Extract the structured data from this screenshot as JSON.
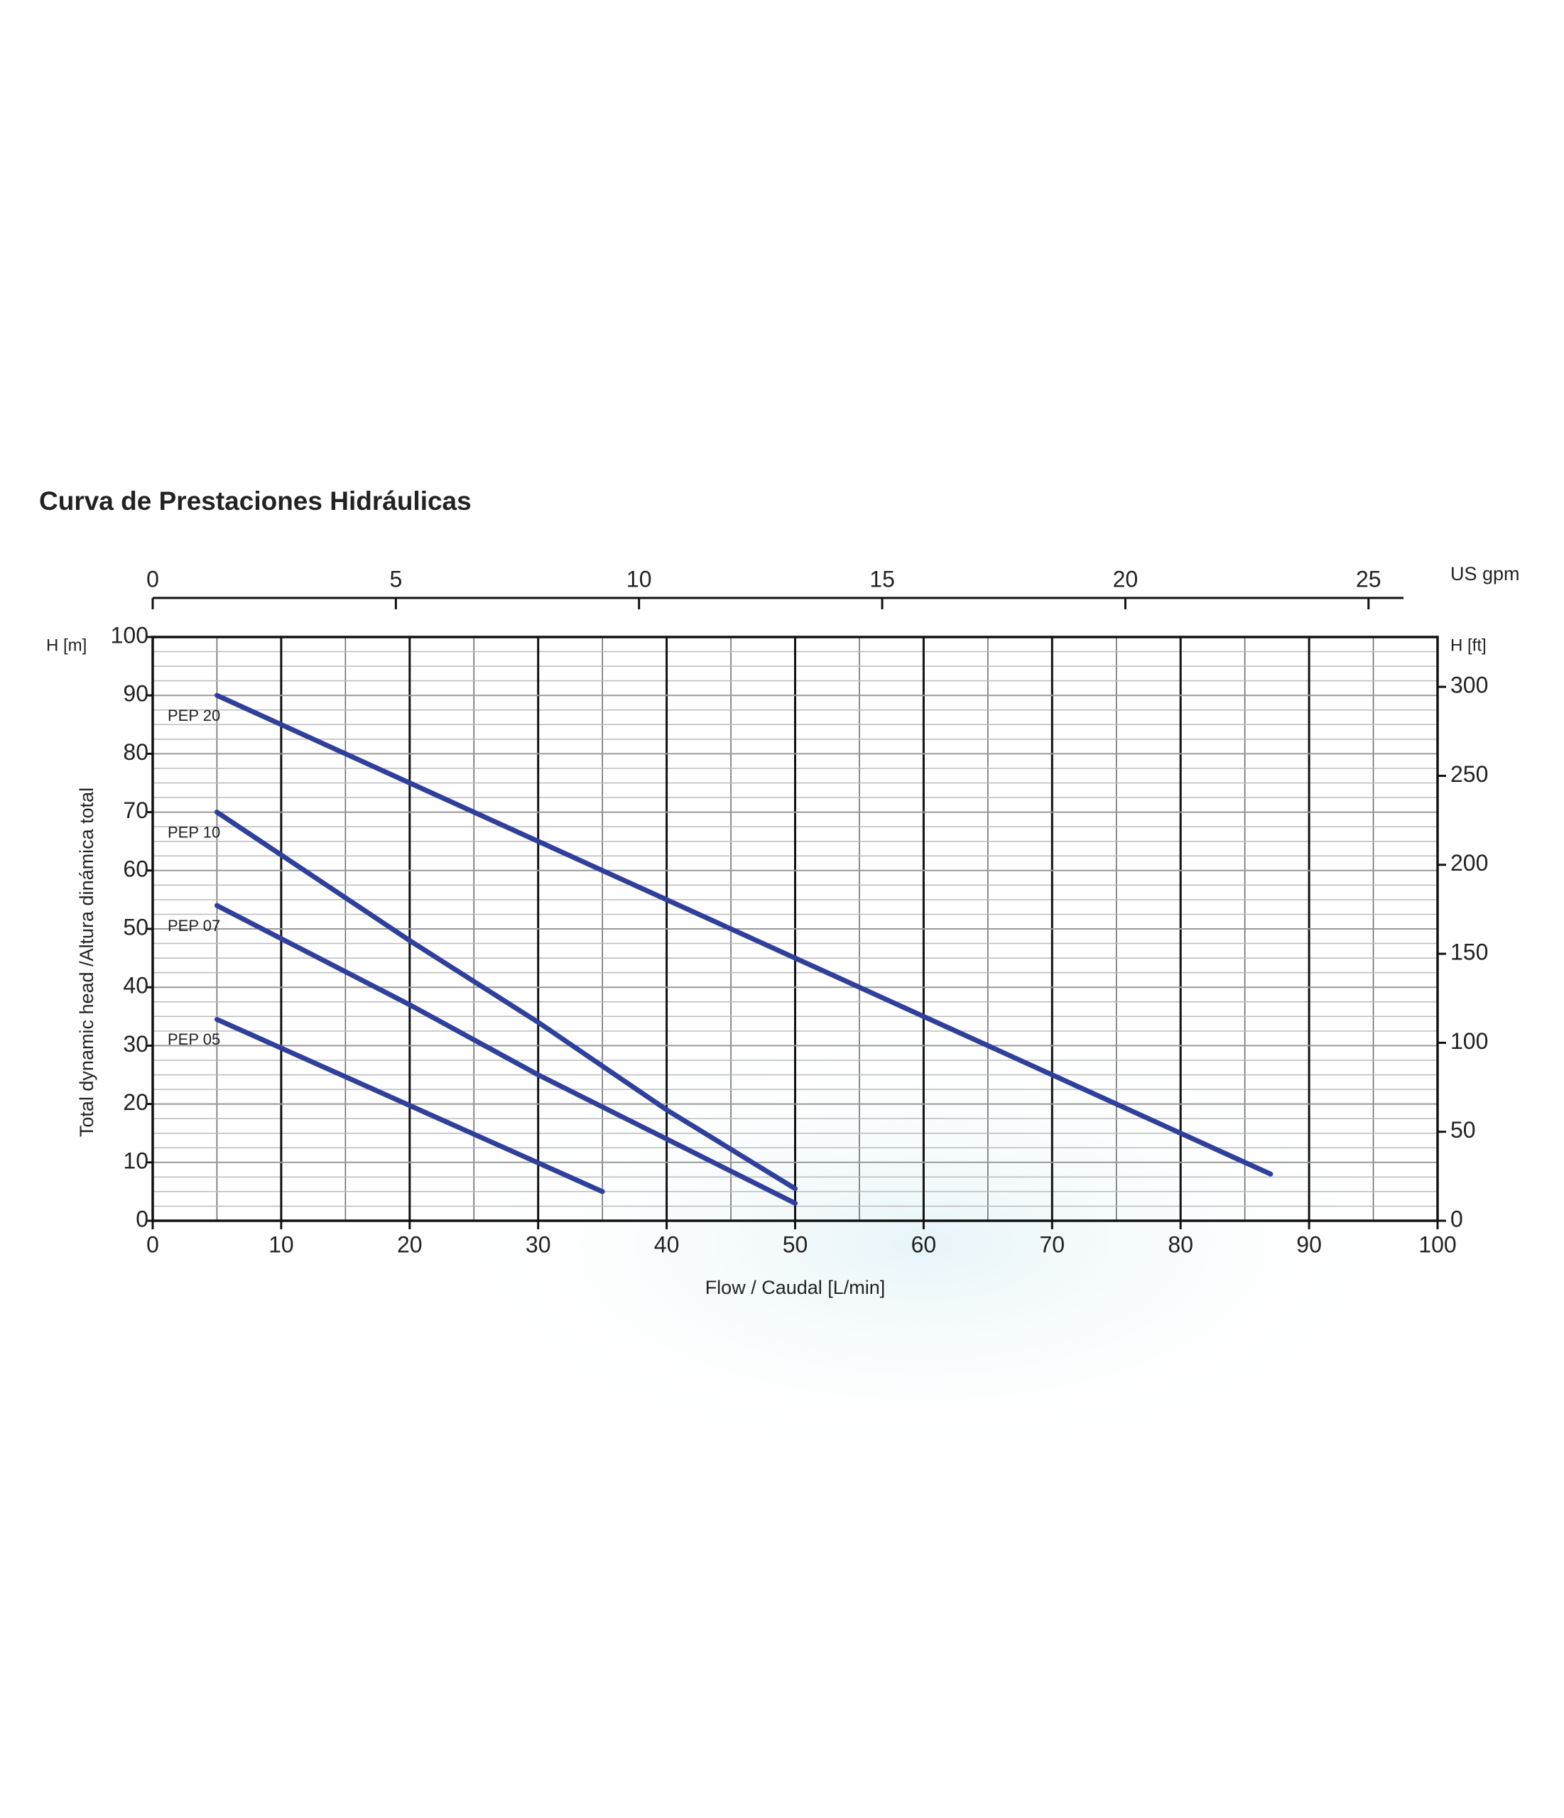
{
  "chart_data": {
    "type": "line",
    "title": "Curva de Prestaciones Hidráulicas",
    "x_label": "Flow / Caudal [L/min]",
    "y_label": "Total dynamic head /Altura dinámica total",
    "y_unit_label": "H [m]",
    "y2_label": "H [ft]",
    "x2_label": "US gpm",
    "xlim": [
      0,
      100
    ],
    "xticks": [
      0,
      10,
      20,
      30,
      40,
      50,
      60,
      70,
      80,
      90,
      100
    ],
    "ylim": [
      0,
      100
    ],
    "yticks": [
      0,
      10,
      20,
      30,
      40,
      50,
      60,
      70,
      80,
      90,
      100
    ],
    "y2lim": [
      0,
      328
    ],
    "y2ticks": [
      0,
      50,
      100,
      150,
      200,
      250,
      300
    ],
    "x2lim": [
      0,
      26.42
    ],
    "x2ticks": [
      0,
      5,
      10,
      15,
      20,
      25
    ],
    "grid": true,
    "series": [
      {
        "name": "PEP 20",
        "color": "#2f3f9c",
        "x": [
          5,
          87
        ],
        "values": [
          90,
          8
        ]
      },
      {
        "name": "PEP 10",
        "color": "#2f3f9c",
        "x": [
          5,
          20,
          30,
          40,
          50
        ],
        "values": [
          70,
          48,
          34,
          19,
          5.5
        ]
      },
      {
        "name": "PEP 07",
        "color": "#2f3f9c",
        "x": [
          5,
          20,
          30,
          40,
          50
        ],
        "values": [
          54,
          37,
          25,
          14,
          3
        ]
      },
      {
        "name": "PEP 05",
        "color": "#2f3f9c",
        "x": [
          5,
          35
        ],
        "values": [
          34.5,
          5
        ]
      }
    ]
  }
}
